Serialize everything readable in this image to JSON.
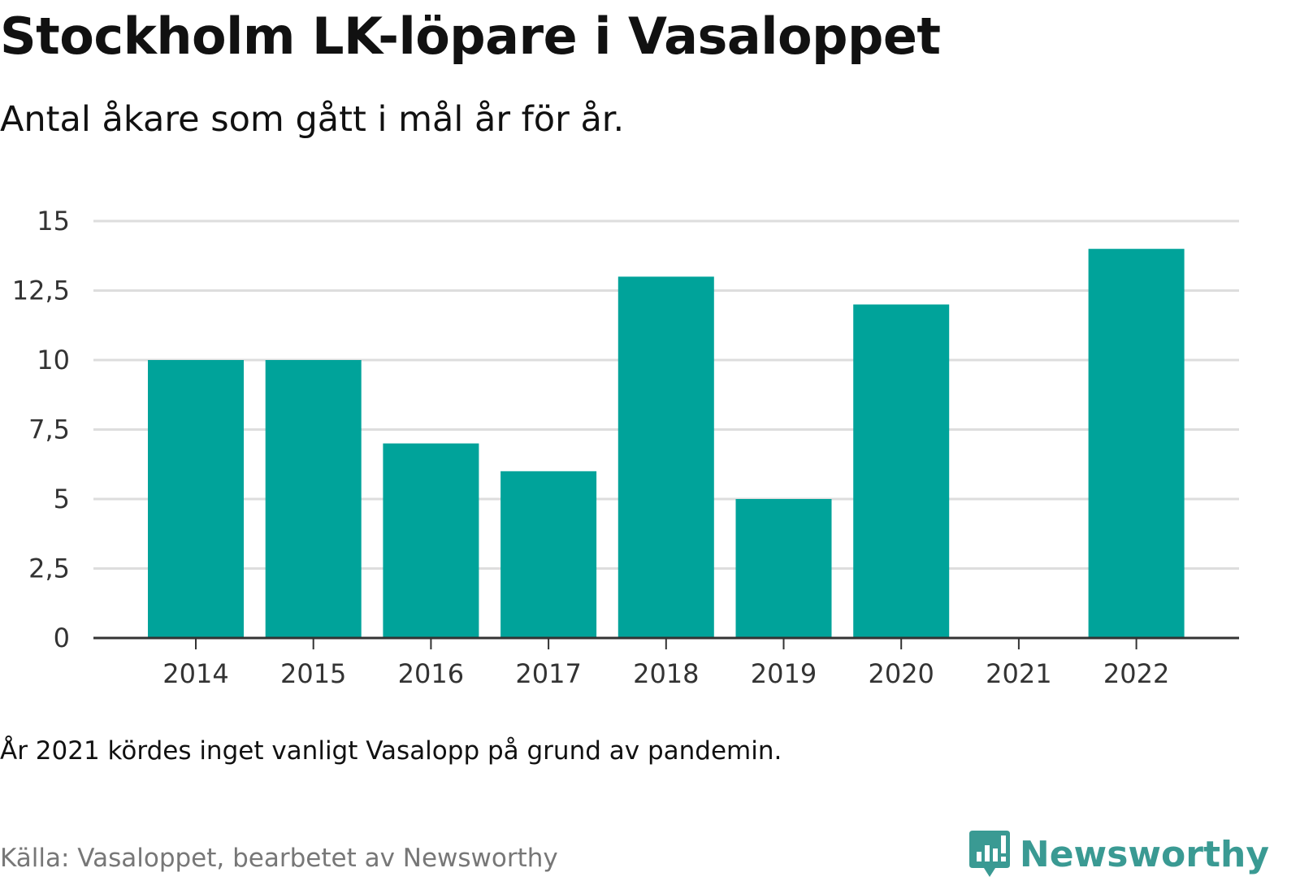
{
  "header": {
    "title": "Stockholm LK-löpare i Vasaloppet",
    "subtitle": "Antal åkare som gått i mål år för år."
  },
  "footer": {
    "note": "År 2021 kördes inget vanligt Vasalopp på grund av pandemin.",
    "source": "Källa: Vasaloppet, bearbetet av Newsworthy",
    "brand": "Newsworthy",
    "brand_icon": "bar-chart-speech-bubble-icon"
  },
  "colors": {
    "bar": "#00a39a",
    "brand": "#3a9a93",
    "grid": "#dddddd",
    "axis": "#333333"
  },
  "chart_data": {
    "type": "bar",
    "categories": [
      "2014",
      "2015",
      "2016",
      "2017",
      "2018",
      "2019",
      "2020",
      "2021",
      "2022"
    ],
    "values": [
      10,
      10,
      7,
      6,
      13,
      5,
      12,
      0,
      14
    ],
    "ylim": [
      0,
      15
    ],
    "yticks": [
      0,
      2.5,
      5,
      7.5,
      10,
      12.5,
      15
    ],
    "ytick_labels": [
      "0",
      "2,5",
      "5",
      "7,5",
      "10",
      "12,5",
      "15"
    ],
    "grid": true,
    "xlabel": "",
    "ylabel": ""
  }
}
